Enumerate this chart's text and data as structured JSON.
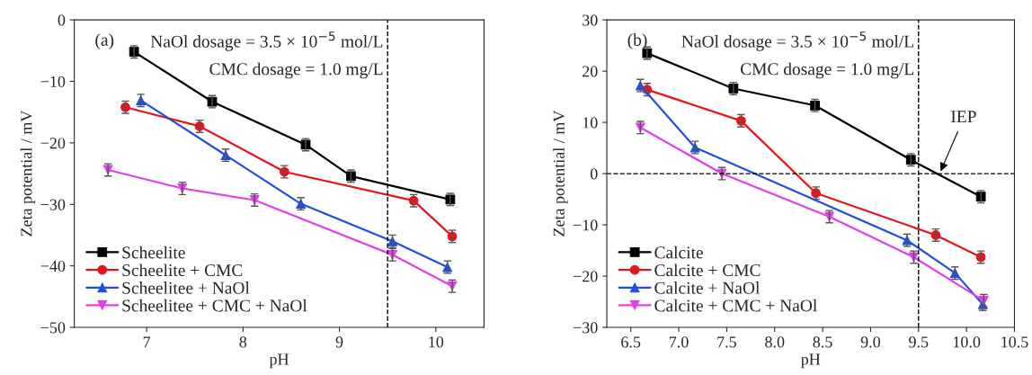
{
  "chart_data": [
    {
      "type": "line",
      "xlabel": "pH",
      "ylabel": "Zeta potential / mV",
      "xlim": [
        6.25,
        10.5
      ],
      "xticks": [
        7,
        8,
        9,
        10
      ],
      "ylim": [
        -50,
        0
      ],
      "yticks": [
        -50,
        -40,
        -30,
        -20,
        -10,
        0
      ],
      "legend": "bottom left",
      "grid": false,
      "annotations": [
        "(a)",
        "NaOl dosage = 3.5 × 10$^{−5}$ mol/L",
        "CMC dosage = 1.0 mg/L"
      ],
      "ref_lines": [
        {
          "axis": "x",
          "value": 9.5,
          "color": "#000000",
          "line_style": "dashed"
        }
      ],
      "series": [
        {
          "name": "Scheelite",
          "color": "#000000",
          "marker": "square",
          "x": [
            6.87,
            7.68,
            8.65,
            9.12,
            10.15
          ],
          "values": [
            -5.2,
            -13.3,
            -20.3,
            -25.4,
            -29.2
          ],
          "errors": [
            1,
            1,
            1,
            1,
            1
          ]
        },
        {
          "name": "Scheelite + CMC",
          "color": "#e8141b",
          "marker": "circle",
          "x": [
            6.78,
            7.55,
            8.43,
            9.77,
            10.17
          ],
          "values": [
            -14.2,
            -17.3,
            -24.7,
            -29.4,
            -35.2
          ],
          "errors": [
            1,
            1,
            1,
            1,
            1
          ]
        },
        {
          "name": "Scheelitee + NaOl",
          "color": "#1f4fe0",
          "marker": "triangle",
          "x": [
            6.94,
            7.82,
            8.6,
            9.55,
            10.12
          ],
          "values": [
            -13.1,
            -22.0,
            -29.9,
            -36.0,
            -40.2
          ],
          "errors": [
            1,
            1,
            1,
            1,
            1
          ]
        },
        {
          "name": "Scheelitee + CMC + NaOl",
          "color": "#e040e8",
          "marker": "triangle_down",
          "x": [
            6.6,
            7.37,
            8.12,
            9.55,
            10.17
          ],
          "values": [
            -24.4,
            -27.4,
            -29.3,
            -38.2,
            -43.3
          ],
          "errors": [
            1,
            1,
            1,
            1,
            1
          ]
        }
      ]
    },
    {
      "type": "line",
      "xlabel": "pH",
      "ylabel": "Zeta potential / mV",
      "xlim": [
        6.25,
        10.5
      ],
      "xticks": [
        {
          "value": 6.5,
          "label": "6.5"
        },
        {
          "value": 7.0,
          "label": "7.0"
        },
        {
          "value": 7.5,
          "label": "7.5"
        },
        {
          "value": 8.0,
          "label": "8.0"
        },
        {
          "value": 8.5,
          "label": "8.5"
        },
        {
          "value": 9.0,
          "label": "9.0"
        },
        {
          "value": 9.5,
          "label": "9.5"
        },
        {
          "value": 10.0,
          "label": "10.0"
        },
        {
          "value": 10.5,
          "label": "10.5"
        }
      ],
      "ylim": [
        -30,
        30
      ],
      "yticks": [
        -30,
        -20,
        -10,
        0,
        10,
        20,
        30
      ],
      "legend": "bottom left",
      "grid": false,
      "annotations": [
        "(b)",
        "NaOl dosage = 3.5 × 10$^{−5}$ mol/L",
        "CMC dosage = 1.0 mg/L",
        {
          "text": "IEP",
          "x": 9.72,
          "y": 0
        }
      ],
      "ref_lines": [
        {
          "axis": "x",
          "value": 9.5,
          "color": "#000000",
          "line_style": "dashed"
        },
        {
          "axis": "y",
          "value": 0,
          "color": "#000000",
          "line_style": "dashed"
        }
      ],
      "series": [
        {
          "name": "Calcite",
          "color": "#000000",
          "marker": "square",
          "x": [
            6.67,
            7.57,
            8.42,
            9.42,
            10.15
          ],
          "values": [
            23.5,
            16.6,
            13.3,
            2.7,
            -4.5
          ],
          "errors": [
            1.2,
            1.2,
            1.2,
            1.2,
            1.2
          ]
        },
        {
          "name": "Calcite + CMC",
          "color": "#e8141b",
          "marker": "circle",
          "x": [
            6.67,
            7.65,
            8.43,
            9.68,
            10.15
          ],
          "values": [
            16.4,
            10.3,
            -3.8,
            -12.0,
            -16.3
          ],
          "errors": [
            1.2,
            1.2,
            1.2,
            1.2,
            1.2
          ]
        },
        {
          "name": "Calcite + NaOl",
          "color": "#1f4fe0",
          "marker": "triangle",
          "x": [
            6.6,
            7.17,
            9.38,
            9.88,
            10.17
          ],
          "values": [
            17.2,
            5.1,
            -13.0,
            -19.4,
            -25.5
          ],
          "errors": [
            1.2,
            1.2,
            1.2,
            1.2,
            1.2
          ]
        },
        {
          "name": "Calcite + CMC + NaOl",
          "color": "#e040e8",
          "marker": "triangle_down",
          "x": [
            6.6,
            7.45,
            8.57,
            9.45,
            10.18
          ],
          "values": [
            9.0,
            0.0,
            -8.4,
            -16.3,
            -24.8
          ],
          "errors": [
            1.2,
            1.2,
            1.2,
            1.2,
            1.2
          ]
        }
      ]
    }
  ]
}
